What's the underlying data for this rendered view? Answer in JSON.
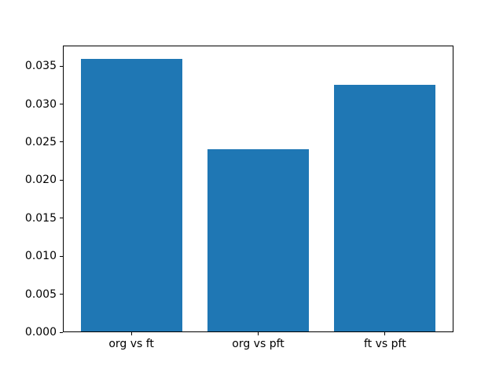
{
  "chart_data": {
    "type": "bar",
    "categories": [
      "org vs ft",
      "org vs pft",
      "ft vs pft"
    ],
    "values": [
      0.0359,
      0.0241,
      0.0325
    ],
    "title": "",
    "xlabel": "",
    "ylabel": "",
    "ylim": [
      0,
      0.0377
    ],
    "xlim": [
      -0.54,
      2.54
    ],
    "yticks": [
      0.0,
      0.005,
      0.01,
      0.015,
      0.02,
      0.025,
      0.03,
      0.035
    ],
    "ytick_labels": [
      "0.000",
      "0.005",
      "0.010",
      "0.015",
      "0.020",
      "0.025",
      "0.030",
      "0.035"
    ],
    "bar_width": 0.8,
    "bar_color": "#1f77b4",
    "axis_color": "#000000",
    "background_color": "#ffffff",
    "grid": false,
    "legend": "none"
  }
}
